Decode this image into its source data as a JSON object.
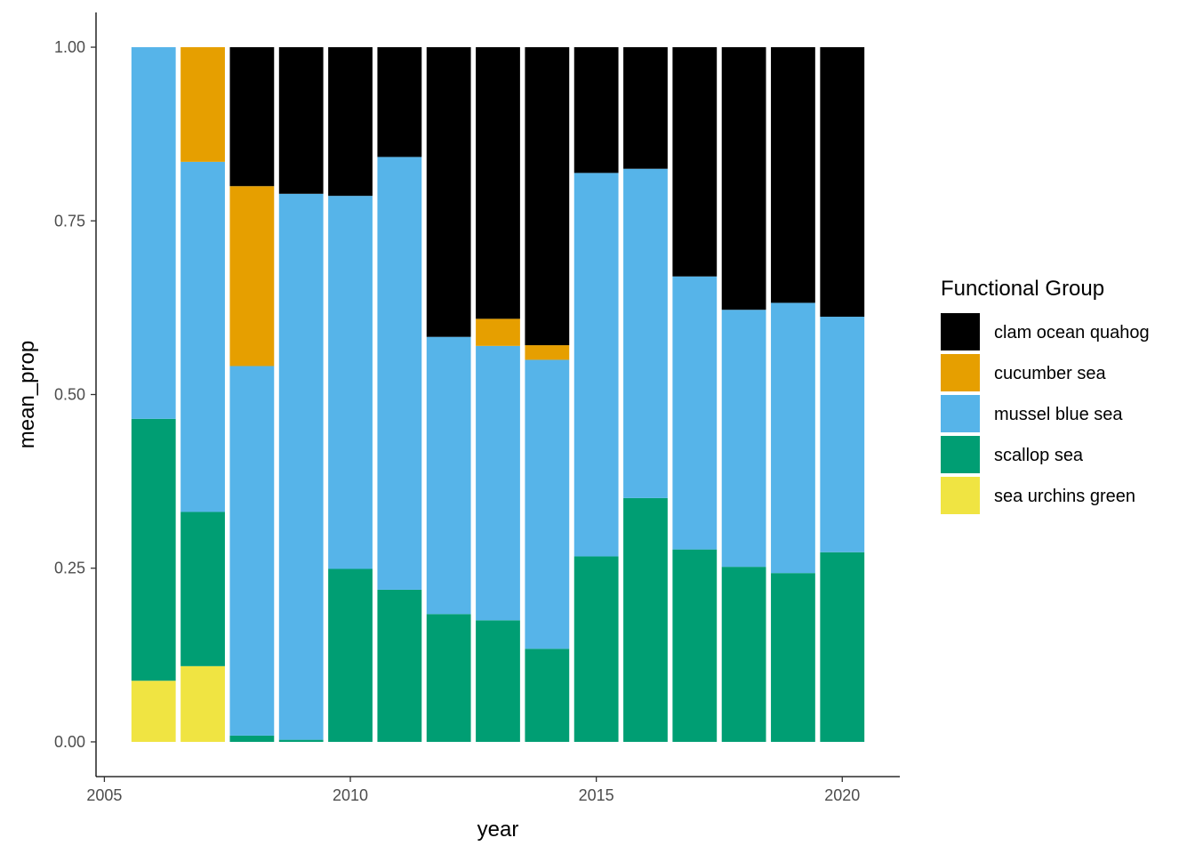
{
  "chart_data": {
    "type": "bar",
    "stacked": true,
    "xlabel": "year",
    "ylabel": "mean_prop",
    "xlim": [
      2005,
      2021
    ],
    "ylim": [
      0,
      1
    ],
    "x_ticks": [
      2005,
      2010,
      2015,
      2020
    ],
    "x_tick_labels": [
      "2005",
      "2010",
      "2015",
      "2020"
    ],
    "y_ticks": [
      0,
      0.25,
      0.5,
      0.75,
      1.0
    ],
    "y_tick_labels": [
      "0.00",
      "0.25",
      "0.50",
      "0.75",
      "1.00"
    ],
    "grid": false,
    "legend_position": "right",
    "legend_title": "Functional Group",
    "x": [
      2006,
      2007,
      2008,
      2009,
      2010,
      2011,
      2012,
      2013,
      2014,
      2015,
      2016,
      2017,
      2018,
      2019,
      2020
    ],
    "series": [
      {
        "name": "sea urchins green",
        "color": "#F0E442",
        "values": [
          0.088,
          0.109,
          0,
          0,
          0,
          0,
          0,
          0,
          0,
          0,
          0,
          0,
          0,
          0,
          0
        ]
      },
      {
        "name": "scallop sea",
        "color": "#009E73",
        "values": [
          0.377,
          0.222,
          0.009,
          0.003,
          0.249,
          0.219,
          0.184,
          0.175,
          0.134,
          0.267,
          0.351,
          0.277,
          0.252,
          0.243,
          0.273
        ]
      },
      {
        "name": "mussel blue sea",
        "color": "#56B4E9",
        "values": [
          0.535,
          0.504,
          0.532,
          0.786,
          0.537,
          0.623,
          0.399,
          0.395,
          0.416,
          0.552,
          0.474,
          0.393,
          0.37,
          0.389,
          0.339
        ]
      },
      {
        "name": "cucumber sea",
        "color": "#E69F00",
        "values": [
          0,
          0.165,
          0.259,
          0,
          0,
          0,
          0,
          0.039,
          0.021,
          0,
          0,
          0,
          0,
          0,
          0
        ]
      },
      {
        "name": "clam ocean quahog",
        "color": "#000000",
        "values": [
          0,
          0,
          0.2,
          0.211,
          0.214,
          0.158,
          0.417,
          0.391,
          0.429,
          0.181,
          0.175,
          0.33,
          0.378,
          0.368,
          0.388
        ]
      }
    ],
    "legend_order": [
      "clam ocean quahog",
      "cucumber sea",
      "mussel blue sea",
      "scallop sea",
      "sea urchins green"
    ]
  }
}
